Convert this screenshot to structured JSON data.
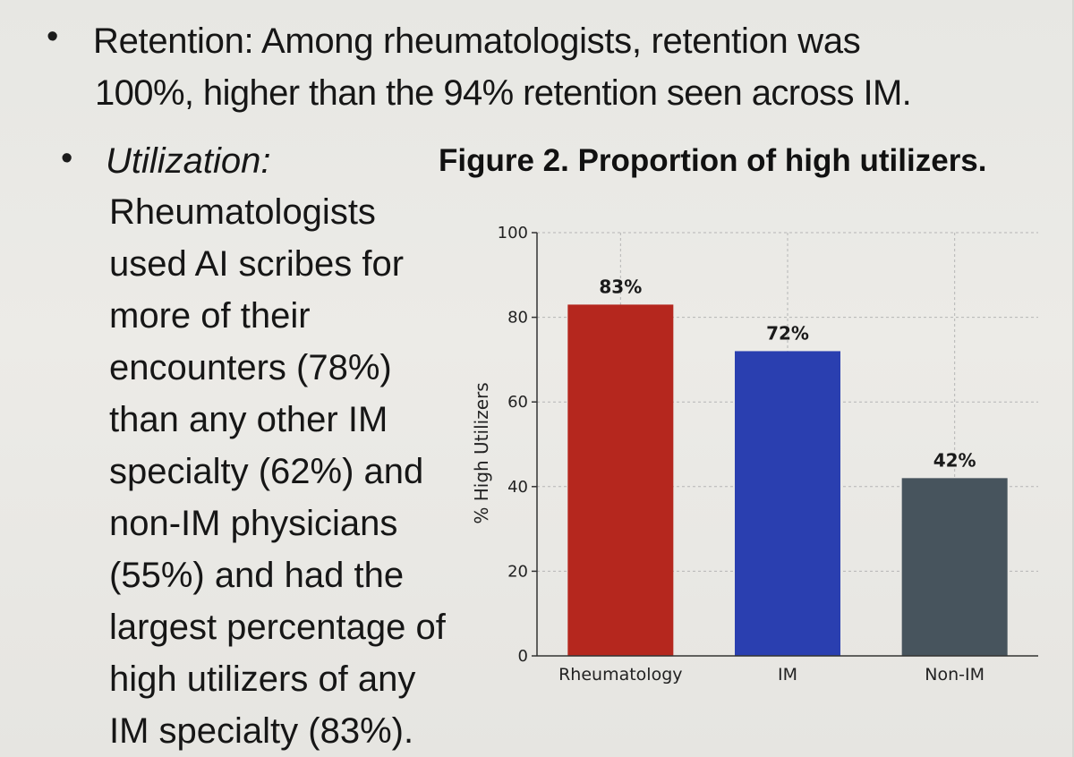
{
  "bullet_symbol": "•",
  "retention": {
    "line1": "Retention: Among rheumatologists, retention was",
    "line2": "100%, higher than the 94% retention seen across IM."
  },
  "utilization": {
    "heading": "Utilization:",
    "lines": [
      "Rheumatologists",
      "used AI scribes for",
      "more of their",
      "encounters (78%)",
      "than any other IM",
      "specialty (62%) and",
      "non-IM physicians",
      "(55%) and had the",
      "largest percentage of",
      "high utilizers of any",
      "IM specialty (83%)."
    ]
  },
  "figure_title": "Figure 2. Proportion of high utilizers.",
  "chart_data": {
    "type": "bar",
    "categories": [
      "Rheumatology",
      "IM",
      "Non-IM"
    ],
    "values": [
      83,
      72,
      42
    ],
    "data_labels": [
      "83%",
      "72%",
      "42%"
    ],
    "bar_colors": [
      "#b5271e",
      "#2a3fb0",
      "#47545d"
    ],
    "ylabel": "% High Utilizers",
    "ylim": [
      0,
      100
    ],
    "yticks": [
      0,
      20,
      40,
      60,
      80,
      100
    ],
    "grid": true
  }
}
